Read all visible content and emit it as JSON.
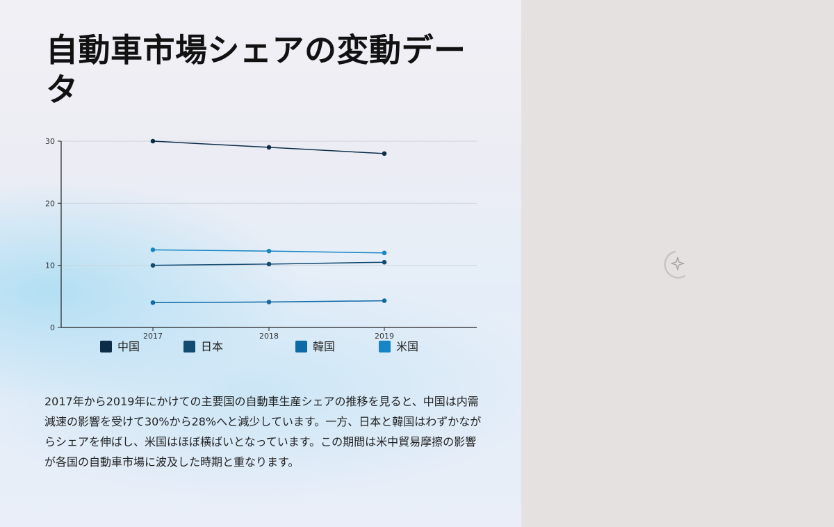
{
  "title": "自動車市場シェアの変動データ",
  "description": "2017年から2019年にかけての主要国の自動車生産シェアの推移を見ると、中国は内需減速の影響を受けて30%から28%へと減少しています。一方、日本と韓国はわずかながらシェアを伸ばし、米国はほぼ横ばいとなっています。この期間は米中貿易摩擦の影響が各国の自動車市場に波及した時期と重なります。",
  "chart_data": {
    "type": "line",
    "title": "",
    "xlabel": "",
    "ylabel": "",
    "x": [
      "2017",
      "2018",
      "2019"
    ],
    "ylim": [
      0,
      30
    ],
    "yticks": [
      "0",
      "10",
      "20",
      "30"
    ],
    "grid": true,
    "legend_position": "bottom",
    "series": [
      {
        "name": "中国",
        "values": [
          30,
          29,
          28
        ],
        "color": "#0c2d48"
      },
      {
        "name": "日本",
        "values": [
          10,
          10.2,
          10.5
        ],
        "color": "#124a70"
      },
      {
        "name": "韓国",
        "values": [
          4,
          4.1,
          4.3
        ],
        "color": "#0e6aa5"
      },
      {
        "name": "米国",
        "values": [
          12.5,
          12.3,
          12
        ],
        "color": "#1585c6"
      }
    ]
  },
  "right_panel": {
    "icon": "sparkle-loading-icon"
  }
}
